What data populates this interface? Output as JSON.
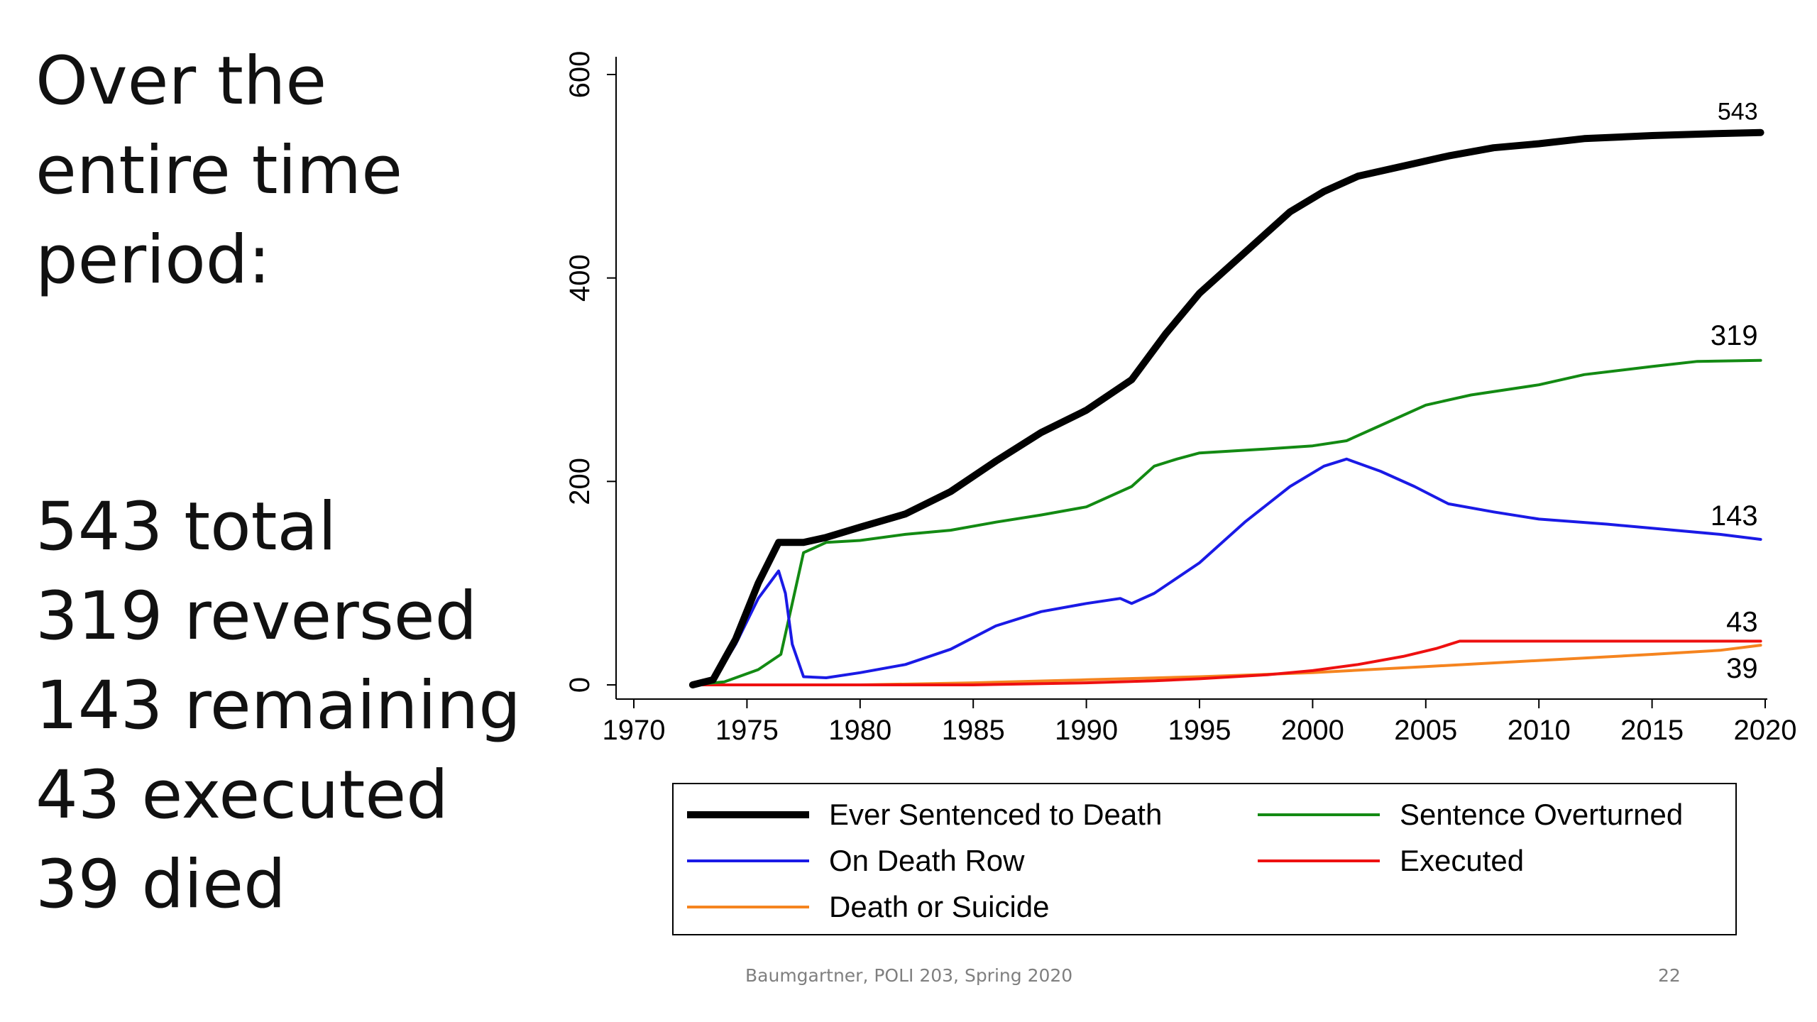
{
  "heading": [
    "Over the",
    "entire time",
    "period:"
  ],
  "stats": [
    "543 total",
    "319 reversed",
    "143 remaining",
    "43 executed",
    "39 died"
  ],
  "footer": {
    "credit": "Baumgartner, POLI 203, Spring 2020",
    "page": "22"
  },
  "chart_data": {
    "type": "line",
    "xlim": [
      1972,
      2020
    ],
    "ylim": [
      0,
      600
    ],
    "x_ticks": [
      1970,
      1975,
      1980,
      1985,
      1990,
      1995,
      2000,
      2005,
      2010,
      2015,
      2020
    ],
    "y_ticks": [
      0,
      200,
      400,
      600
    ],
    "grid": false,
    "legend_position": "bottom",
    "series": [
      {
        "name": "Ever Sentenced to Death",
        "color": "#000000",
        "end_label": "543",
        "points": [
          [
            1972.6,
            0
          ],
          [
            1973.5,
            5
          ],
          [
            1974.5,
            45
          ],
          [
            1975.5,
            100
          ],
          [
            1976.4,
            140
          ],
          [
            1977.5,
            140
          ],
          [
            1978.5,
            145
          ],
          [
            1980,
            155
          ],
          [
            1982,
            168
          ],
          [
            1984,
            190
          ],
          [
            1986,
            220
          ],
          [
            1988,
            248
          ],
          [
            1990,
            270
          ],
          [
            1992,
            300
          ],
          [
            1993.5,
            345
          ],
          [
            1995,
            385
          ],
          [
            1997,
            425
          ],
          [
            1999,
            465
          ],
          [
            2000.5,
            485
          ],
          [
            2002,
            500
          ],
          [
            2004,
            510
          ],
          [
            2006,
            520
          ],
          [
            2008,
            528
          ],
          [
            2010,
            532
          ],
          [
            2012,
            537
          ],
          [
            2015,
            540
          ],
          [
            2018,
            542
          ],
          [
            2019.8,
            543
          ]
        ]
      },
      {
        "name": "Sentence Overturned",
        "color": "#138a13",
        "end_label": "319",
        "points": [
          [
            1972.6,
            0
          ],
          [
            1974,
            3
          ],
          [
            1975.5,
            15
          ],
          [
            1976.5,
            30
          ],
          [
            1977,
            80
          ],
          [
            1977.5,
            130
          ],
          [
            1978.5,
            140
          ],
          [
            1980,
            142
          ],
          [
            1982,
            148
          ],
          [
            1984,
            152
          ],
          [
            1986,
            160
          ],
          [
            1988,
            167
          ],
          [
            1990,
            175
          ],
          [
            1992,
            195
          ],
          [
            1993,
            215
          ],
          [
            1994,
            222
          ],
          [
            1995,
            228
          ],
          [
            1998,
            232
          ],
          [
            2000,
            235
          ],
          [
            2001.5,
            240
          ],
          [
            2003,
            255
          ],
          [
            2005,
            275
          ],
          [
            2007,
            285
          ],
          [
            2010,
            295
          ],
          [
            2012,
            305
          ],
          [
            2015,
            313
          ],
          [
            2017,
            318
          ],
          [
            2019.8,
            319
          ]
        ]
      },
      {
        "name": "On Death Row",
        "color": "#1a1ae6",
        "end_label": "143",
        "points": [
          [
            1972.6,
            0
          ],
          [
            1973.5,
            3
          ],
          [
            1974.5,
            40
          ],
          [
            1975.5,
            85
          ],
          [
            1976.4,
            112
          ],
          [
            1976.7,
            90
          ],
          [
            1977,
            40
          ],
          [
            1977.5,
            8
          ],
          [
            1978.5,
            7
          ],
          [
            1980,
            12
          ],
          [
            1982,
            20
          ],
          [
            1984,
            35
          ],
          [
            1986,
            58
          ],
          [
            1988,
            72
          ],
          [
            1990,
            80
          ],
          [
            1991.5,
            85
          ],
          [
            1992,
            80
          ],
          [
            1993,
            90
          ],
          [
            1995,
            120
          ],
          [
            1997,
            160
          ],
          [
            1999,
            195
          ],
          [
            2000.5,
            215
          ],
          [
            2001.5,
            222
          ],
          [
            2003,
            210
          ],
          [
            2004.5,
            195
          ],
          [
            2006,
            178
          ],
          [
            2008,
            170
          ],
          [
            2010,
            163
          ],
          [
            2013,
            158
          ],
          [
            2016,
            152
          ],
          [
            2018,
            148
          ],
          [
            2019.8,
            143
          ]
        ]
      },
      {
        "name": "Executed",
        "color": "#ee1010",
        "end_label": "43",
        "points": [
          [
            1972.6,
            0
          ],
          [
            1985,
            0
          ],
          [
            1990,
            2
          ],
          [
            1993,
            4
          ],
          [
            1995,
            6
          ],
          [
            1998,
            10
          ],
          [
            2000,
            14
          ],
          [
            2002,
            20
          ],
          [
            2004,
            28
          ],
          [
            2005.5,
            36
          ],
          [
            2006.5,
            43
          ],
          [
            2019.8,
            43
          ]
        ]
      },
      {
        "name": "Death or Suicide",
        "color": "#f5841f",
        "end_label": "39",
        "points": [
          [
            1972.6,
            0
          ],
          [
            1980,
            0
          ],
          [
            1985,
            2
          ],
          [
            1990,
            5
          ],
          [
            1995,
            8
          ],
          [
            2000,
            12
          ],
          [
            2005,
            18
          ],
          [
            2010,
            24
          ],
          [
            2015,
            30
          ],
          [
            2018,
            34
          ],
          [
            2019.8,
            39
          ]
        ]
      }
    ]
  }
}
